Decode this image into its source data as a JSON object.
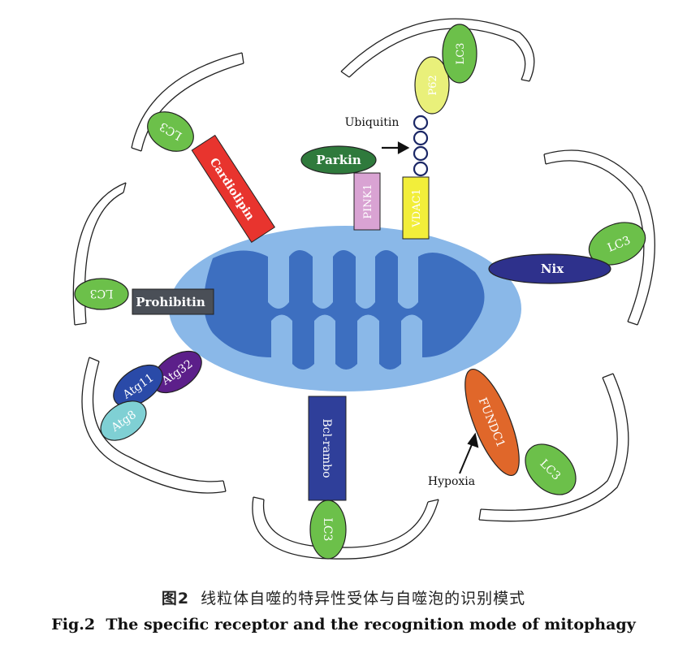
{
  "labels": {
    "cardiolipin": "Cardiolipin",
    "prohibitin": "Prohibitin",
    "pink1": "PINK1",
    "vdac1": "VDAC1",
    "parkin": "Parkin",
    "ubiquitin": "Ubiquitin",
    "p62": "P62",
    "nix": "Nix",
    "fundc1": "FUNDC1",
    "hypoxia": "Hypoxia",
    "bcl_rambo": "Bcl-rambo",
    "atg11": "Atg11",
    "atg32": "Atg32",
    "atg8": "Atg8",
    "lc3": "LC3"
  },
  "caption": {
    "cn_number": "图2",
    "cn_title": "线粒体自噬的特异性受体与自噬泡的识别模式",
    "en_number": "Fig.2",
    "en_title": "The specific receptor and the recognition mode of mitophagy"
  },
  "colors": {
    "mito_outer": "#8ab8e8",
    "mito_inner": "#3d6fc0",
    "lc3": "#6cc04a",
    "cardiolipin": "#e8342e",
    "prohibitin": "#4a4f57",
    "pink1": "#d9a3d3",
    "vdac1": "#f2ee3a",
    "parkin": "#2f7a3c",
    "ubiquitin": "#1b2766",
    "p62": "#e9f07a",
    "nix": "#2e318c",
    "fundc1": "#e0672a",
    "bcl_rambo": "#2f3f9a",
    "atg11": "#2a4aa8",
    "atg32": "#5c1f8a",
    "atg8": "#7fd0d4"
  }
}
